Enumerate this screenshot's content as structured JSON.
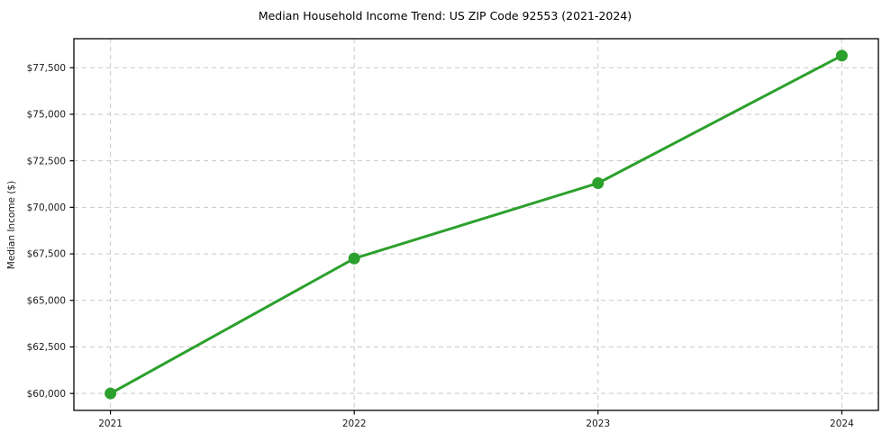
{
  "chart_data": {
    "type": "line",
    "title": "Median Household Income Trend: US ZIP Code 92553 (2021-2024)",
    "xlabel": "",
    "ylabel": "Median Income ($)",
    "x": [
      2021,
      2022,
      2023,
      2024
    ],
    "xtick_labels": [
      "2021",
      "2022",
      "2023",
      "2024"
    ],
    "values": [
      60000,
      67250,
      71300,
      78150
    ],
    "yticks": [
      60000,
      62500,
      65000,
      67500,
      70000,
      72500,
      75000,
      77500
    ],
    "ytick_labels": [
      "$60,000",
      "$62,500",
      "$65,000",
      "$67,500",
      "$70,000",
      "$72,500",
      "$75,000",
      "$77,500"
    ],
    "xlim": [
      2020.85,
      2024.15
    ],
    "ylim": [
      59090,
      79060
    ],
    "grid": true,
    "grid_style": "dashed",
    "grid_color": "#c9c9c9",
    "line_color": "#2ca02c",
    "marker": "circle",
    "spine_color": "#000000",
    "text_color": "#1a1a1a",
    "legend": "none"
  }
}
